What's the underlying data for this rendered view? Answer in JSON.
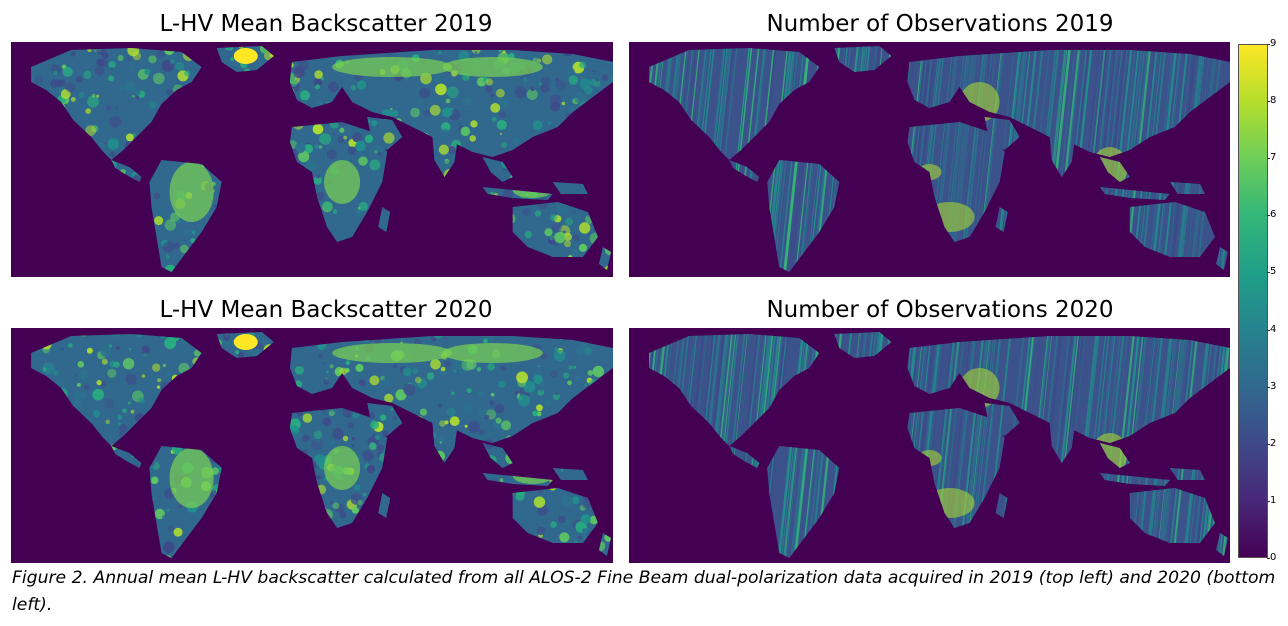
{
  "panels": [
    {
      "title": "L-HV Mean Backscatter 2019",
      "kind": "backscatter",
      "year": "2019"
    },
    {
      "title": "Number of Observations 2019",
      "kind": "observations",
      "year": "2019"
    },
    {
      "title": "L-HV Mean Backscatter 2020",
      "kind": "backscatter",
      "year": "2020"
    },
    {
      "title": "Number of Observations 2020",
      "kind": "observations",
      "year": "2020"
    }
  ],
  "colorbar": {
    "colormap": "viridis",
    "min": 0,
    "max": 9,
    "ticks": [
      "0",
      "1",
      "2",
      "3",
      "4",
      "5",
      "6",
      "7",
      "8",
      "9"
    ]
  },
  "caption": "Figure 2. Annual mean L-HV backscatter calculated from all ALOS-2 Fine Beam dual-polarization data acquired in 2019 (top left) and 2020 (bottom left).",
  "colors": {
    "ocean": "#440154",
    "land_low": "#3b528b",
    "land_mid": "#21918c",
    "land_high": "#5ec962",
    "land_max": "#fde725"
  }
}
